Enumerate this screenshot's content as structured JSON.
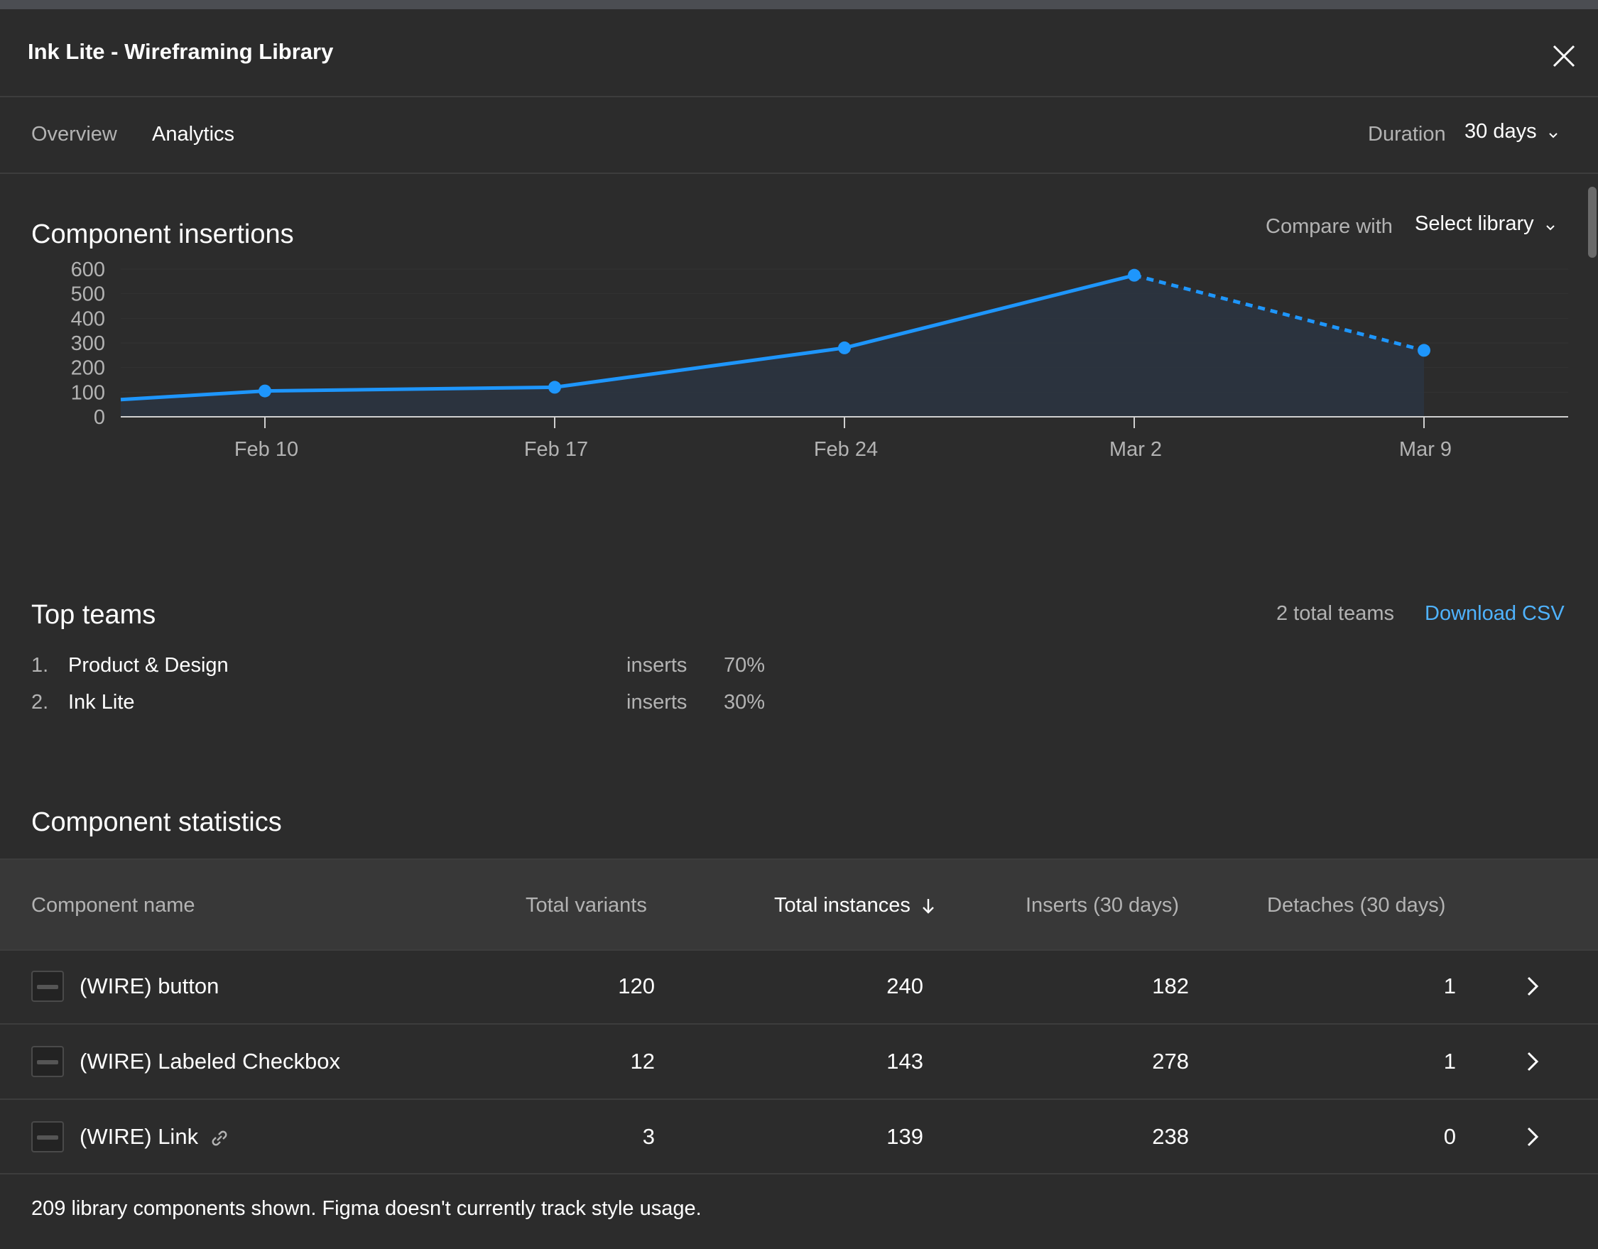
{
  "window": {
    "title": "Ink Lite - Wireframing Library"
  },
  "tabs": [
    {
      "label": "Overview",
      "active": false
    },
    {
      "label": "Analytics",
      "active": true
    }
  ],
  "duration": {
    "label": "Duration",
    "value": "30 days"
  },
  "insertions": {
    "title": "Component insertions",
    "compare_label": "Compare with",
    "compare_value": "Select library"
  },
  "chart_data": {
    "type": "area",
    "title": "Component insertions",
    "xlabel": "",
    "ylabel": "",
    "ylim": [
      0,
      600
    ],
    "yticks": [
      "0",
      "100",
      "200",
      "300",
      "400",
      "500",
      "600"
    ],
    "xticks": [
      "Feb 10",
      "Feb 17",
      "Feb 24",
      "Mar 2",
      "Mar 9"
    ],
    "start_value": 70,
    "values": [
      105,
      120,
      280,
      575,
      270
    ],
    "projected_last_segment": true,
    "colors": {
      "line": "#1e96fc",
      "fill": "#2b3440",
      "grid": "#333333"
    },
    "grid": true,
    "legend": "none"
  },
  "teams": {
    "title": "Top teams",
    "total": "2 total teams",
    "download": "Download CSV",
    "items": [
      {
        "rank": "1.",
        "name": "Product & Design",
        "metric": "inserts",
        "pct": "70%"
      },
      {
        "rank": "2.",
        "name": "Ink Lite",
        "metric": "inserts",
        "pct": "30%"
      }
    ]
  },
  "stats": {
    "title": "Component statistics",
    "columns": {
      "name": "Component name",
      "variants": "Total variants",
      "instances": "Total instances",
      "inserts": "Inserts (30 days)",
      "detaches": "Detaches (30 days)"
    },
    "rows": [
      {
        "name": "(WIRE) button",
        "variants": "120",
        "instances": "240",
        "inserts": "182",
        "detaches": "1"
      },
      {
        "name": "(WIRE) Labeled Checkbox",
        "variants": "12",
        "instances": "143",
        "inserts": "278",
        "detaches": "1"
      },
      {
        "name": "(WIRE) Link",
        "variants": "3",
        "instances": "139",
        "inserts": "238",
        "detaches": "0"
      }
    ]
  },
  "footer": {
    "text": "209 library components shown. Figma doesn't currently track style usage."
  },
  "icons": {
    "close": "close-icon",
    "chevron_down": "chevron-down-icon",
    "chevron_right": "chevron-right-icon",
    "sort": "arrow-down-icon",
    "link": "link-icon"
  }
}
